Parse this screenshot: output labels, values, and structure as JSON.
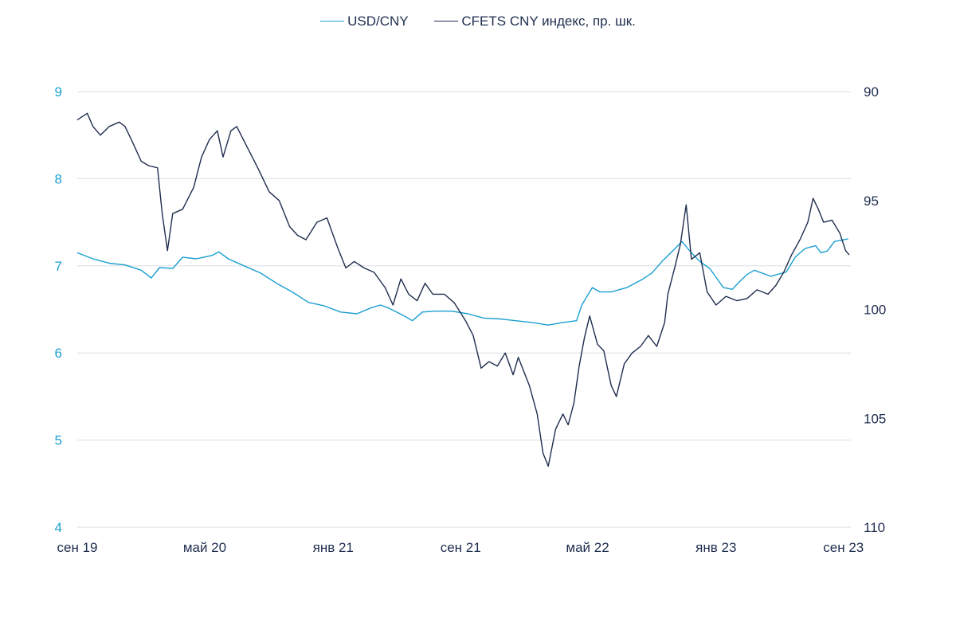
{
  "chart_data": {
    "type": "line",
    "title": "",
    "legend": {
      "placement": "top-center"
    },
    "x_axis": {
      "type": "date",
      "range": [
        "2019-09-01",
        "2023-09-15"
      ],
      "ticks": [
        {
          "date": "2019-09-01",
          "label": "сен 19"
        },
        {
          "date": "2020-05-01",
          "label": "май 20"
        },
        {
          "date": "2021-01-01",
          "label": "янв 21"
        },
        {
          "date": "2021-09-01",
          "label": "сен 21"
        },
        {
          "date": "2022-05-01",
          "label": "май 22"
        },
        {
          "date": "2023-01-01",
          "label": "янв 23"
        },
        {
          "date": "2023-09-01",
          "label": "сен 23"
        }
      ]
    },
    "y_axis_left": {
      "min": 4,
      "max": 9,
      "ticks": [
        "4",
        "5",
        "6",
        "7",
        "8",
        "9"
      ],
      "color": "#1a9fd0",
      "grid": true
    },
    "y_axis_right": {
      "min": 90,
      "max": 110,
      "reversed": true,
      "ticks": [
        "90",
        "95",
        "100",
        "105",
        "110"
      ],
      "color": "#1f2d4e"
    },
    "series": [
      {
        "name": "USD/CNY",
        "axis": "left",
        "color": "#1a9fd0",
        "points": [
          [
            "2019-09-01",
            7.15
          ],
          [
            "2019-10-01",
            7.08
          ],
          [
            "2019-11-01",
            7.03
          ],
          [
            "2019-12-01",
            7.01
          ],
          [
            "2020-01-01",
            6.95
          ],
          [
            "2020-01-20",
            6.86
          ],
          [
            "2020-02-05",
            6.98
          ],
          [
            "2020-03-01",
            6.97
          ],
          [
            "2020-03-20",
            7.1
          ],
          [
            "2020-04-15",
            7.08
          ],
          [
            "2020-05-15",
            7.12
          ],
          [
            "2020-05-28",
            7.16
          ],
          [
            "2020-06-15",
            7.08
          ],
          [
            "2020-07-15",
            7.0
          ],
          [
            "2020-08-15",
            6.92
          ],
          [
            "2020-09-15",
            6.8
          ],
          [
            "2020-10-15",
            6.7
          ],
          [
            "2020-11-15",
            6.58
          ],
          [
            "2020-12-15",
            6.54
          ],
          [
            "2021-01-15",
            6.47
          ],
          [
            "2021-02-15",
            6.45
          ],
          [
            "2021-03-15",
            6.52
          ],
          [
            "2021-04-01",
            6.55
          ],
          [
            "2021-04-15",
            6.52
          ],
          [
            "2021-05-15",
            6.43
          ],
          [
            "2021-06-01",
            6.37
          ],
          [
            "2021-06-20",
            6.47
          ],
          [
            "2021-07-15",
            6.48
          ],
          [
            "2021-08-15",
            6.48
          ],
          [
            "2021-09-15",
            6.45
          ],
          [
            "2021-10-15",
            6.4
          ],
          [
            "2021-11-15",
            6.39
          ],
          [
            "2021-12-15",
            6.37
          ],
          [
            "2022-01-15",
            6.35
          ],
          [
            "2022-02-15",
            6.32
          ],
          [
            "2022-03-15",
            6.35
          ],
          [
            "2022-04-10",
            6.37
          ],
          [
            "2022-04-20",
            6.55
          ],
          [
            "2022-05-10",
            6.75
          ],
          [
            "2022-05-25",
            6.7
          ],
          [
            "2022-06-15",
            6.7
          ],
          [
            "2022-07-15",
            6.75
          ],
          [
            "2022-08-15",
            6.85
          ],
          [
            "2022-09-01",
            6.92
          ],
          [
            "2022-09-20",
            7.05
          ],
          [
            "2022-10-15",
            7.2
          ],
          [
            "2022-10-28",
            7.28
          ],
          [
            "2022-11-15",
            7.15
          ],
          [
            "2022-12-01",
            7.05
          ],
          [
            "2022-12-20",
            6.97
          ],
          [
            "2023-01-15",
            6.75
          ],
          [
            "2023-02-01",
            6.73
          ],
          [
            "2023-02-15",
            6.82
          ],
          [
            "2023-03-01",
            6.9
          ],
          [
            "2023-03-15",
            6.95
          ],
          [
            "2023-04-15",
            6.88
          ],
          [
            "2023-05-15",
            6.93
          ],
          [
            "2023-06-01",
            7.1
          ],
          [
            "2023-06-20",
            7.2
          ],
          [
            "2023-07-10",
            7.23
          ],
          [
            "2023-07-20",
            7.15
          ],
          [
            "2023-08-01",
            7.17
          ],
          [
            "2023-08-15",
            7.28
          ],
          [
            "2023-09-10",
            7.31
          ]
        ]
      },
      {
        "name": "CFETS CNY индекс, пр. шк.",
        "axis": "right",
        "color": "#1f2d4e",
        "points": [
          [
            "2019-09-01",
            91.3
          ],
          [
            "2019-09-20",
            91.0
          ],
          [
            "2019-10-01",
            91.6
          ],
          [
            "2019-10-15",
            92.0
          ],
          [
            "2019-11-01",
            91.6
          ],
          [
            "2019-11-20",
            91.4
          ],
          [
            "2019-12-01",
            91.6
          ],
          [
            "2019-12-15",
            92.3
          ],
          [
            "2020-01-01",
            93.2
          ],
          [
            "2020-01-15",
            93.4
          ],
          [
            "2020-02-01",
            93.5
          ],
          [
            "2020-02-10",
            95.6
          ],
          [
            "2020-02-20",
            97.3
          ],
          [
            "2020-03-01",
            95.6
          ],
          [
            "2020-03-20",
            95.4
          ],
          [
            "2020-04-10",
            94.4
          ],
          [
            "2020-04-25",
            93.0
          ],
          [
            "2020-05-10",
            92.2
          ],
          [
            "2020-05-25",
            91.8
          ],
          [
            "2020-06-05",
            93.0
          ],
          [
            "2020-06-20",
            91.8
          ],
          [
            "2020-07-01",
            91.6
          ],
          [
            "2020-07-20",
            92.5
          ],
          [
            "2020-08-10",
            93.5
          ],
          [
            "2020-09-01",
            94.6
          ],
          [
            "2020-09-20",
            95.0
          ],
          [
            "2020-10-10",
            96.2
          ],
          [
            "2020-10-25",
            96.6
          ],
          [
            "2020-11-10",
            96.8
          ],
          [
            "2020-12-01",
            96.0
          ],
          [
            "2020-12-20",
            95.8
          ],
          [
            "2021-01-10",
            97.2
          ],
          [
            "2021-01-25",
            98.1
          ],
          [
            "2021-02-10",
            97.8
          ],
          [
            "2021-03-01",
            98.1
          ],
          [
            "2021-03-20",
            98.3
          ],
          [
            "2021-04-10",
            99.0
          ],
          [
            "2021-04-25",
            99.8
          ],
          [
            "2021-05-10",
            98.6
          ],
          [
            "2021-05-25",
            99.3
          ],
          [
            "2021-06-10",
            99.6
          ],
          [
            "2021-06-25",
            98.8
          ],
          [
            "2021-07-10",
            99.3
          ],
          [
            "2021-08-01",
            99.3
          ],
          [
            "2021-08-20",
            99.7
          ],
          [
            "2021-09-10",
            100.5
          ],
          [
            "2021-09-25",
            101.2
          ],
          [
            "2021-10-10",
            102.7
          ],
          [
            "2021-10-25",
            102.4
          ],
          [
            "2021-11-10",
            102.6
          ],
          [
            "2021-11-25",
            102.0
          ],
          [
            "2021-12-10",
            103.0
          ],
          [
            "2021-12-20",
            102.2
          ],
          [
            "2022-01-10",
            103.5
          ],
          [
            "2022-01-25",
            104.8
          ],
          [
            "2022-02-05",
            106.6
          ],
          [
            "2022-02-15",
            107.2
          ],
          [
            "2022-03-01",
            105.5
          ],
          [
            "2022-03-15",
            104.8
          ],
          [
            "2022-03-25",
            105.3
          ],
          [
            "2022-04-05",
            104.3
          ],
          [
            "2022-04-15",
            102.6
          ],
          [
            "2022-04-25",
            101.3
          ],
          [
            "2022-05-05",
            100.3
          ],
          [
            "2022-05-20",
            101.6
          ],
          [
            "2022-06-01",
            101.9
          ],
          [
            "2022-06-15",
            103.5
          ],
          [
            "2022-06-25",
            104.0
          ],
          [
            "2022-07-10",
            102.5
          ],
          [
            "2022-07-25",
            102.0
          ],
          [
            "2022-08-10",
            101.7
          ],
          [
            "2022-08-25",
            101.2
          ],
          [
            "2022-09-10",
            101.7
          ],
          [
            "2022-09-25",
            100.6
          ],
          [
            "2022-10-01",
            99.3
          ],
          [
            "2022-10-15",
            98.0
          ],
          [
            "2022-10-25",
            97.0
          ],
          [
            "2022-11-05",
            95.2
          ],
          [
            "2022-11-15",
            97.7
          ],
          [
            "2022-12-01",
            97.4
          ],
          [
            "2022-12-15",
            99.2
          ],
          [
            "2023-01-01",
            99.8
          ],
          [
            "2023-01-20",
            99.4
          ],
          [
            "2023-02-10",
            99.6
          ],
          [
            "2023-03-01",
            99.5
          ],
          [
            "2023-03-20",
            99.1
          ],
          [
            "2023-04-10",
            99.3
          ],
          [
            "2023-04-25",
            98.9
          ],
          [
            "2023-05-10",
            98.3
          ],
          [
            "2023-05-25",
            97.5
          ],
          [
            "2023-06-10",
            96.8
          ],
          [
            "2023-06-25",
            96.0
          ],
          [
            "2023-07-05",
            94.9
          ],
          [
            "2023-07-15",
            95.4
          ],
          [
            "2023-07-25",
            96.0
          ],
          [
            "2023-08-10",
            95.9
          ],
          [
            "2023-08-25",
            96.5
          ],
          [
            "2023-09-05",
            97.3
          ],
          [
            "2023-09-12",
            97.5
          ]
        ]
      }
    ]
  }
}
